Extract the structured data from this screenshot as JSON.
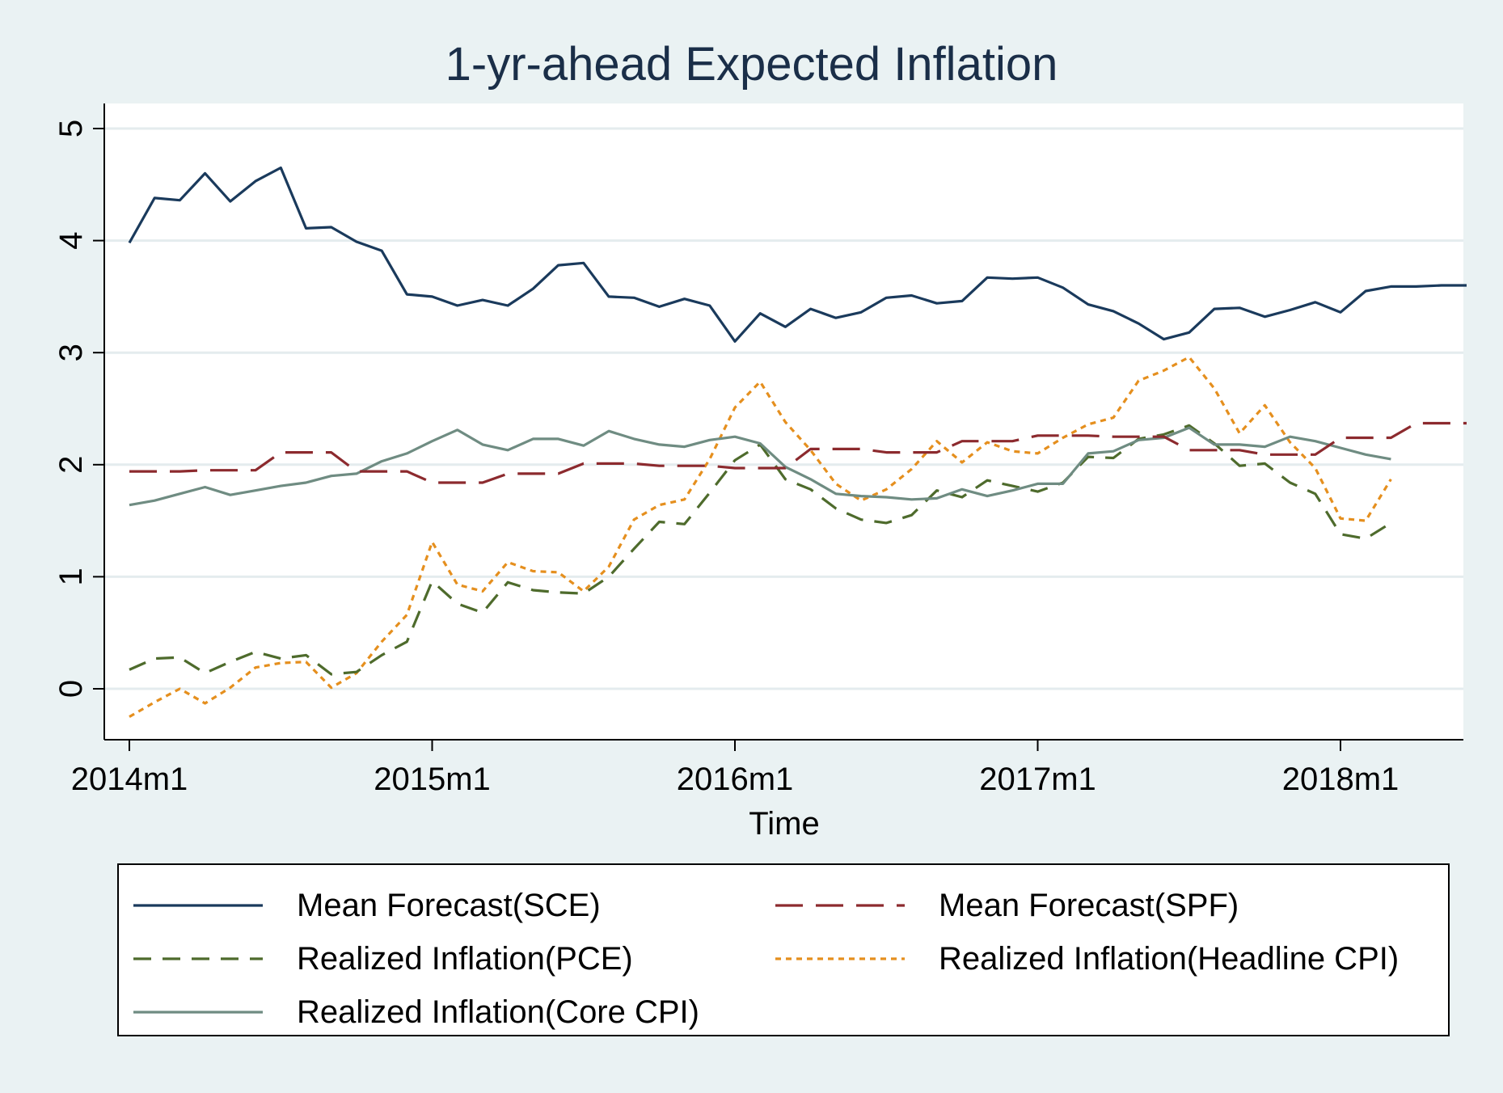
{
  "chart_data": {
    "type": "line",
    "title": "1-yr-ahead Expected Inflation",
    "xlabel": "Time",
    "ylabel": "",
    "xlim": [
      "2014m1",
      "2018m5"
    ],
    "ylim": [
      -0.45,
      5.2
    ],
    "x_ticks": [
      "2014m1",
      "2015m1",
      "2016m1",
      "2017m1",
      "2018m1"
    ],
    "y_ticks": [
      0,
      1,
      2,
      3,
      4,
      5
    ],
    "grid": true,
    "legend_position": "bottom",
    "series": [
      {
        "name": "Mean Forecast(SCE)",
        "color": "#1a3a5c",
        "style": "solid",
        "start": "2014m1",
        "values": [
          3.98,
          4.38,
          4.36,
          4.6,
          4.35,
          4.53,
          4.65,
          4.11,
          4.12,
          3.99,
          3.91,
          3.52,
          3.5,
          3.42,
          3.47,
          3.42,
          3.57,
          3.78,
          3.8,
          3.5,
          3.49,
          3.41,
          3.48,
          3.42,
          3.1,
          3.35,
          3.23,
          3.39,
          3.31,
          3.36,
          3.49,
          3.51,
          3.44,
          3.46,
          3.67,
          3.66,
          3.67,
          3.58,
          3.43,
          3.37,
          3.26,
          3.12,
          3.18,
          3.39,
          3.4,
          3.32,
          3.38,
          3.45,
          3.36,
          3.55,
          3.59,
          3.59,
          3.6,
          3.6
        ]
      },
      {
        "name": "Mean Forecast(SPF)",
        "color": "#8c2a2e",
        "style": "longdash",
        "start": "2014m1",
        "values": [
          1.94,
          1.94,
          1.94,
          1.95,
          1.95,
          1.95,
          2.11,
          2.11,
          2.11,
          1.94,
          1.94,
          1.94,
          1.84,
          1.84,
          1.84,
          1.92,
          1.92,
          1.92,
          2.01,
          2.01,
          2.01,
          1.99,
          1.99,
          1.99,
          1.97,
          1.97,
          1.97,
          2.14,
          2.14,
          2.14,
          2.11,
          2.11,
          2.11,
          2.21,
          2.21,
          2.21,
          2.26,
          2.26,
          2.26,
          2.25,
          2.25,
          2.25,
          2.13,
          2.13,
          2.13,
          2.09,
          2.09,
          2.09,
          2.24,
          2.24,
          2.24,
          2.37,
          2.37,
          2.37
        ]
      },
      {
        "name": "Realized Inflation(PCE)",
        "color": "#4e6b2c",
        "style": "dash",
        "start": "2014m1",
        "values": [
          0.17,
          0.27,
          0.28,
          0.14,
          0.24,
          0.33,
          0.27,
          0.3,
          0.13,
          0.15,
          0.3,
          0.42,
          0.96,
          0.76,
          0.68,
          0.95,
          0.88,
          0.86,
          0.85,
          1.0,
          1.25,
          1.49,
          1.47,
          1.75,
          2.04,
          2.18,
          1.87,
          1.78,
          1.61,
          1.51,
          1.48,
          1.55,
          1.77,
          1.71,
          1.86,
          1.81,
          1.76,
          1.84,
          2.07,
          2.06,
          2.23,
          2.27,
          2.35,
          2.19,
          1.99,
          2.01,
          1.84,
          1.74,
          1.38,
          1.34,
          1.48
        ]
      },
      {
        "name": "Realized Inflation(Headline CPI)",
        "color": "#e58f1e",
        "style": "dot",
        "start": "2014m1",
        "values": [
          -0.25,
          -0.12,
          0.0,
          -0.13,
          0.01,
          0.19,
          0.23,
          0.24,
          0.01,
          0.14,
          0.42,
          0.66,
          1.31,
          0.93,
          0.87,
          1.13,
          1.05,
          1.04,
          0.87,
          1.09,
          1.51,
          1.64,
          1.69,
          2.05,
          2.51,
          2.74,
          2.38,
          2.13,
          1.83,
          1.68,
          1.78,
          1.96,
          2.21,
          2.02,
          2.2,
          2.12,
          2.1,
          2.24,
          2.36,
          2.42,
          2.75,
          2.84,
          2.96,
          2.68,
          2.28,
          2.53,
          2.2,
          1.97,
          1.52,
          1.5,
          1.87
        ]
      },
      {
        "name": "Realized Inflation(Core CPI)",
        "color": "#6f8c82",
        "style": "solid",
        "start": "2014m1",
        "values": [
          1.64,
          1.68,
          1.74,
          1.8,
          1.73,
          1.77,
          1.81,
          1.84,
          1.9,
          1.92,
          2.03,
          2.1,
          2.21,
          2.31,
          2.18,
          2.13,
          2.23,
          2.23,
          2.17,
          2.3,
          2.23,
          2.18,
          2.16,
          2.22,
          2.25,
          2.19,
          1.98,
          1.87,
          1.74,
          1.72,
          1.71,
          1.69,
          1.7,
          1.78,
          1.72,
          1.77,
          1.83,
          1.83,
          2.1,
          2.12,
          2.22,
          2.24,
          2.33,
          2.18,
          2.18,
          2.16,
          2.25,
          2.21,
          2.15,
          2.09,
          2.05
        ]
      }
    ]
  }
}
